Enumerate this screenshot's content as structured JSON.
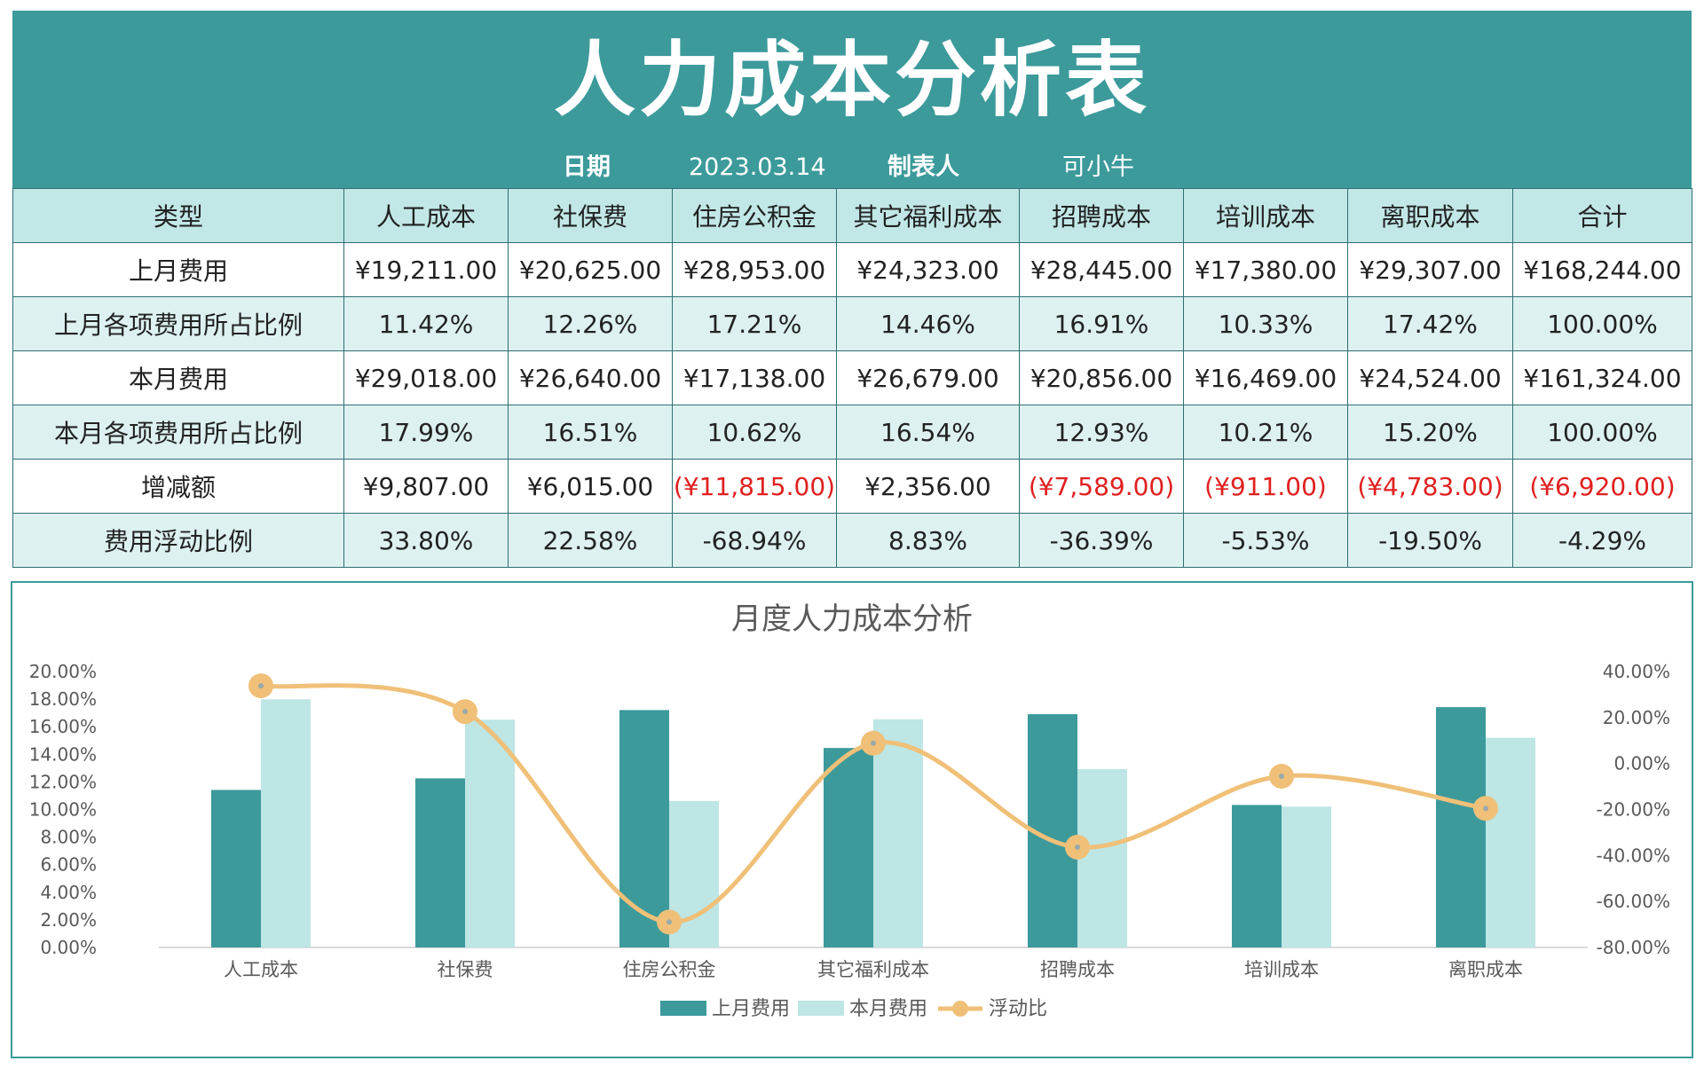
{
  "header": {
    "title": "人力成本分析表",
    "date_label": "日期",
    "date_value": "2023.03.14",
    "author_label": "制表人",
    "author_value": "可小牛"
  },
  "table": {
    "columns": [
      "类型",
      "人工成本",
      "社保费",
      "住房公积金",
      "其它福利成本",
      "招聘成本",
      "培训成本",
      "离职成本",
      "合计"
    ],
    "rows": [
      {
        "label": "上月费用",
        "cells": [
          "¥19,211.00",
          "¥20,625.00",
          "¥28,953.00",
          "¥24,323.00",
          "¥28,445.00",
          "¥17,380.00",
          "¥29,307.00",
          "¥168,244.00"
        ]
      },
      {
        "label": "上月各项费用所占比例",
        "cells": [
          "11.42%",
          "12.26%",
          "17.21%",
          "14.46%",
          "16.91%",
          "10.33%",
          "17.42%",
          "100.00%"
        ]
      },
      {
        "label": "本月费用",
        "cells": [
          "¥29,018.00",
          "¥26,640.00",
          "¥17,138.00",
          "¥26,679.00",
          "¥20,856.00",
          "¥16,469.00",
          "¥24,524.00",
          "¥161,324.00"
        ]
      },
      {
        "label": "本月各项费用所占比例",
        "cells": [
          "17.99%",
          "16.51%",
          "10.62%",
          "16.54%",
          "12.93%",
          "10.21%",
          "15.20%",
          "100.00%"
        ]
      },
      {
        "label": "增减额",
        "cells": [
          "¥9,807.00",
          "¥6,015.00",
          "(¥11,815.00)",
          "¥2,356.00",
          "(¥7,589.00)",
          "(¥911.00)",
          "(¥4,783.00)",
          "(¥6,920.00)"
        ]
      },
      {
        "label": "费用浮动比例",
        "cells": [
          "33.80%",
          "22.58%",
          "-68.94%",
          "8.83%",
          "-36.39%",
          "-5.53%",
          "-19.50%",
          "-4.29%"
        ]
      }
    ]
  },
  "chart_data": {
    "type": "bar",
    "title": "月度人力成本分析",
    "categories": [
      "人工成本",
      "社保费",
      "住房公积金",
      "其它福利成本",
      "招聘成本",
      "培训成本",
      "离职成本"
    ],
    "series": [
      {
        "name": "上月费用",
        "kind": "bar",
        "axis": "left",
        "color": "#3c9a9b",
        "values": [
          11.42,
          12.26,
          17.21,
          14.46,
          16.91,
          10.33,
          17.42
        ]
      },
      {
        "name": "本月费用",
        "kind": "bar",
        "axis": "left",
        "color": "#bde6e5",
        "values": [
          17.99,
          16.51,
          10.62,
          16.54,
          12.93,
          10.21,
          15.2
        ]
      },
      {
        "name": "浮动比",
        "kind": "line",
        "axis": "right",
        "color": "#f0c078",
        "values": [
          33.8,
          22.58,
          -68.94,
          8.83,
          -36.39,
          -5.53,
          -19.5
        ]
      }
    ],
    "y_left": {
      "min": 0,
      "max": 20,
      "step": 2,
      "ticks": [
        "0.00%",
        "2.00%",
        "4.00%",
        "6.00%",
        "8.00%",
        "10.00%",
        "12.00%",
        "14.00%",
        "16.00%",
        "18.00%",
        "20.00%"
      ]
    },
    "y_right": {
      "min": -80,
      "max": 40,
      "step": 20,
      "ticks": [
        "-80.00%",
        "-60.00%",
        "-40.00%",
        "-20.00%",
        "0.00%",
        "20.00%",
        "40.00%"
      ]
    },
    "legend": "bottom-center",
    "grid": false
  }
}
